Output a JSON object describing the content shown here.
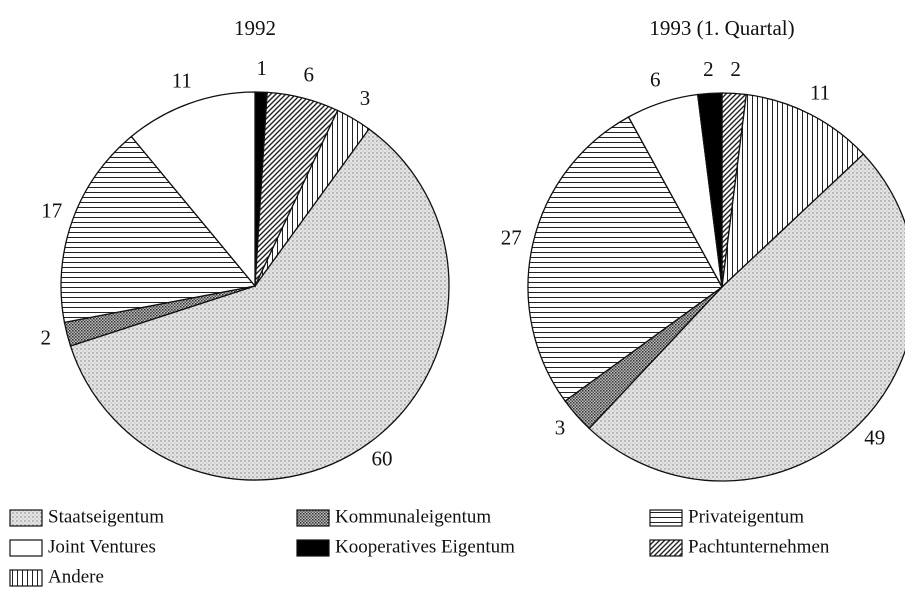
{
  "chart_data": [
    {
      "type": "pie",
      "title": "1992",
      "categories": [
        "Kooperatives Eigentum",
        "Pachtunternehmen",
        "Andere",
        "Staatseigentum",
        "Kommunaleigentum",
        "Privateigentum",
        "Joint Ventures"
      ],
      "values": [
        1,
        6,
        3,
        60,
        2,
        17,
        11
      ]
    },
    {
      "type": "pie",
      "title": "1993 (1. Quartal)",
      "categories": [
        "Pachtunternehmen",
        "Andere",
        "Staatseigentum",
        "Kommunaleigentum",
        "Privateigentum",
        "Joint Ventures",
        "Kooperatives Eigentum"
      ],
      "values": [
        2,
        11,
        49,
        3,
        27,
        6,
        2
      ]
    }
  ],
  "legend": {
    "items": [
      "Staatseigentum",
      "Kommunaleigentum",
      "Privateigentum",
      "Joint Ventures",
      "Kooperatives Eigentum",
      "Pachtunternehmen",
      "Andere"
    ]
  }
}
